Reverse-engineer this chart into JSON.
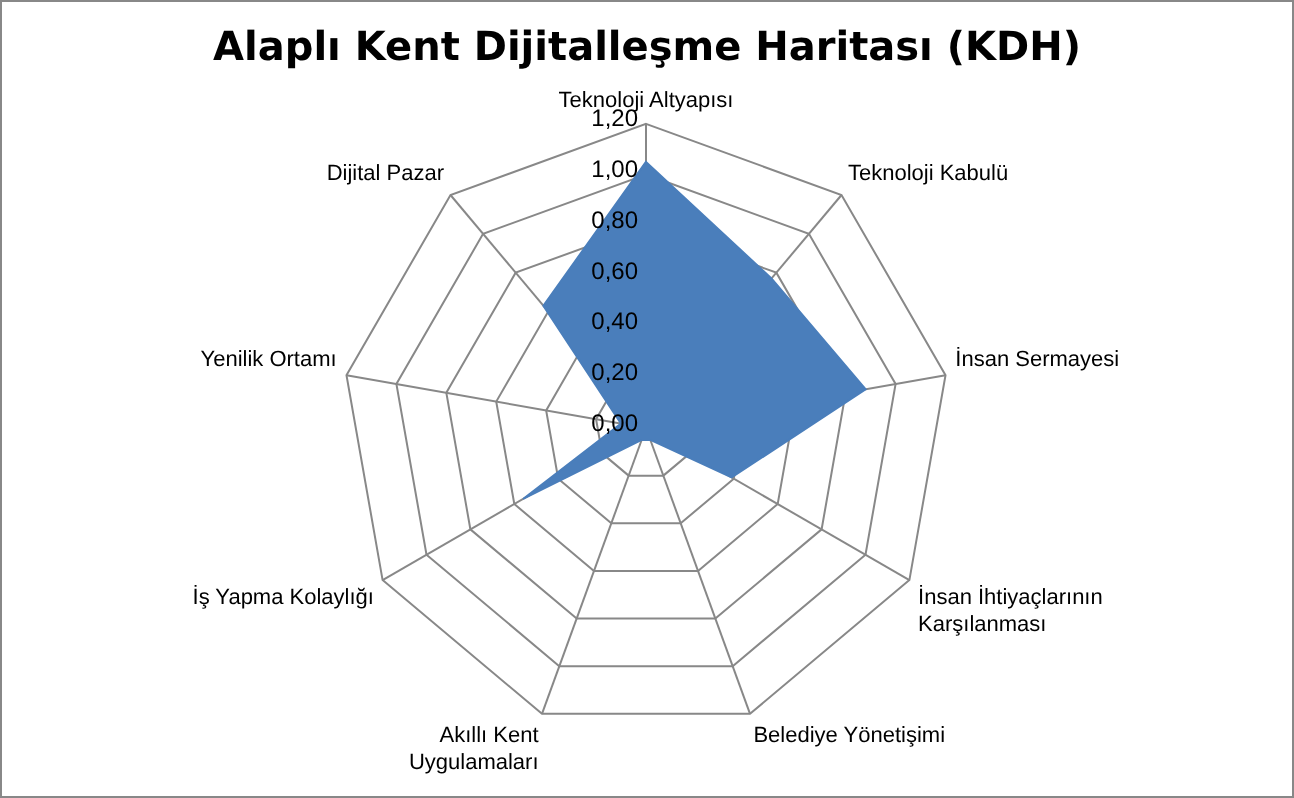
{
  "chart_data": {
    "type": "radar",
    "title": "Alaplı Kent Dijitalleşme Haritası (KDH)",
    "categories": [
      "Teknoloji Altyapısı",
      "Teknoloji Kabulü",
      "İnsan Sermayesi",
      "İnsan İhtiyaçlarının Karşılanması",
      "Belediye Yönetişimi",
      "Akıllı Kent Uygulamaları",
      "İş Yapma Kolaylığı",
      "Yenilik Ortamı",
      "Dijital Pazar"
    ],
    "series": [
      {
        "color": "#4a7ebb",
        "values": [
          1.05,
          0.77,
          0.88,
          0.39,
          0.05,
          0.05,
          0.56,
          0.1,
          0.63
        ]
      }
    ],
    "ylim": [
      0,
      1.2
    ],
    "yticks": [
      {
        "value": 0,
        "label": "0,00"
      },
      {
        "value": 0.2,
        "label": "0,20"
      },
      {
        "value": 0.4,
        "label": "0,40"
      },
      {
        "value": 0.6,
        "label": "0,60"
      },
      {
        "value": 0.8,
        "label": "0,80"
      },
      {
        "value": 1,
        "label": "1,00"
      },
      {
        "value": 1.2,
        "label": "1,20"
      }
    ],
    "grid": true,
    "legend": false
  }
}
